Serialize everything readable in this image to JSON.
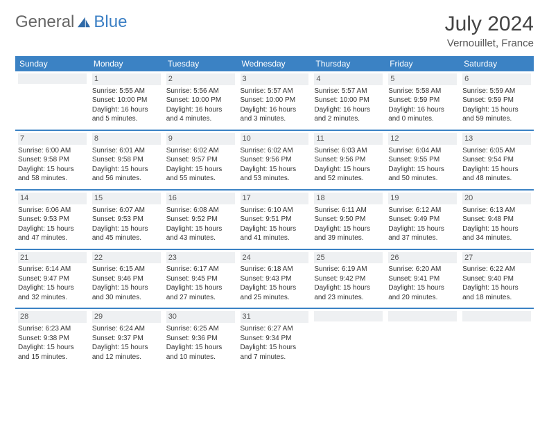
{
  "logo": {
    "part1": "General",
    "part2": "Blue"
  },
  "title": "July 2024",
  "location": "Vernouillet, France",
  "colors": {
    "header_bg": "#3b82c4",
    "header_fg": "#ffffff",
    "rule": "#3b82c4",
    "daynum_bg": "#eef0f2"
  },
  "weekdays": [
    "Sunday",
    "Monday",
    "Tuesday",
    "Wednesday",
    "Thursday",
    "Friday",
    "Saturday"
  ],
  "weeks": [
    [
      null,
      {
        "n": "1",
        "sr": "Sunrise: 5:55 AM",
        "ss": "Sunset: 10:00 PM",
        "d1": "Daylight: 16 hours",
        "d2": "and 5 minutes."
      },
      {
        "n": "2",
        "sr": "Sunrise: 5:56 AM",
        "ss": "Sunset: 10:00 PM",
        "d1": "Daylight: 16 hours",
        "d2": "and 4 minutes."
      },
      {
        "n": "3",
        "sr": "Sunrise: 5:57 AM",
        "ss": "Sunset: 10:00 PM",
        "d1": "Daylight: 16 hours",
        "d2": "and 3 minutes."
      },
      {
        "n": "4",
        "sr": "Sunrise: 5:57 AM",
        "ss": "Sunset: 10:00 PM",
        "d1": "Daylight: 16 hours",
        "d2": "and 2 minutes."
      },
      {
        "n": "5",
        "sr": "Sunrise: 5:58 AM",
        "ss": "Sunset: 9:59 PM",
        "d1": "Daylight: 16 hours",
        "d2": "and 0 minutes."
      },
      {
        "n": "6",
        "sr": "Sunrise: 5:59 AM",
        "ss": "Sunset: 9:59 PM",
        "d1": "Daylight: 15 hours",
        "d2": "and 59 minutes."
      }
    ],
    [
      {
        "n": "7",
        "sr": "Sunrise: 6:00 AM",
        "ss": "Sunset: 9:58 PM",
        "d1": "Daylight: 15 hours",
        "d2": "and 58 minutes."
      },
      {
        "n": "8",
        "sr": "Sunrise: 6:01 AM",
        "ss": "Sunset: 9:58 PM",
        "d1": "Daylight: 15 hours",
        "d2": "and 56 minutes."
      },
      {
        "n": "9",
        "sr": "Sunrise: 6:02 AM",
        "ss": "Sunset: 9:57 PM",
        "d1": "Daylight: 15 hours",
        "d2": "and 55 minutes."
      },
      {
        "n": "10",
        "sr": "Sunrise: 6:02 AM",
        "ss": "Sunset: 9:56 PM",
        "d1": "Daylight: 15 hours",
        "d2": "and 53 minutes."
      },
      {
        "n": "11",
        "sr": "Sunrise: 6:03 AM",
        "ss": "Sunset: 9:56 PM",
        "d1": "Daylight: 15 hours",
        "d2": "and 52 minutes."
      },
      {
        "n": "12",
        "sr": "Sunrise: 6:04 AM",
        "ss": "Sunset: 9:55 PM",
        "d1": "Daylight: 15 hours",
        "d2": "and 50 minutes."
      },
      {
        "n": "13",
        "sr": "Sunrise: 6:05 AM",
        "ss": "Sunset: 9:54 PM",
        "d1": "Daylight: 15 hours",
        "d2": "and 48 minutes."
      }
    ],
    [
      {
        "n": "14",
        "sr": "Sunrise: 6:06 AM",
        "ss": "Sunset: 9:53 PM",
        "d1": "Daylight: 15 hours",
        "d2": "and 47 minutes."
      },
      {
        "n": "15",
        "sr": "Sunrise: 6:07 AM",
        "ss": "Sunset: 9:53 PM",
        "d1": "Daylight: 15 hours",
        "d2": "and 45 minutes."
      },
      {
        "n": "16",
        "sr": "Sunrise: 6:08 AM",
        "ss": "Sunset: 9:52 PM",
        "d1": "Daylight: 15 hours",
        "d2": "and 43 minutes."
      },
      {
        "n": "17",
        "sr": "Sunrise: 6:10 AM",
        "ss": "Sunset: 9:51 PM",
        "d1": "Daylight: 15 hours",
        "d2": "and 41 minutes."
      },
      {
        "n": "18",
        "sr": "Sunrise: 6:11 AM",
        "ss": "Sunset: 9:50 PM",
        "d1": "Daylight: 15 hours",
        "d2": "and 39 minutes."
      },
      {
        "n": "19",
        "sr": "Sunrise: 6:12 AM",
        "ss": "Sunset: 9:49 PM",
        "d1": "Daylight: 15 hours",
        "d2": "and 37 minutes."
      },
      {
        "n": "20",
        "sr": "Sunrise: 6:13 AM",
        "ss": "Sunset: 9:48 PM",
        "d1": "Daylight: 15 hours",
        "d2": "and 34 minutes."
      }
    ],
    [
      {
        "n": "21",
        "sr": "Sunrise: 6:14 AM",
        "ss": "Sunset: 9:47 PM",
        "d1": "Daylight: 15 hours",
        "d2": "and 32 minutes."
      },
      {
        "n": "22",
        "sr": "Sunrise: 6:15 AM",
        "ss": "Sunset: 9:46 PM",
        "d1": "Daylight: 15 hours",
        "d2": "and 30 minutes."
      },
      {
        "n": "23",
        "sr": "Sunrise: 6:17 AM",
        "ss": "Sunset: 9:45 PM",
        "d1": "Daylight: 15 hours",
        "d2": "and 27 minutes."
      },
      {
        "n": "24",
        "sr": "Sunrise: 6:18 AM",
        "ss": "Sunset: 9:43 PM",
        "d1": "Daylight: 15 hours",
        "d2": "and 25 minutes."
      },
      {
        "n": "25",
        "sr": "Sunrise: 6:19 AM",
        "ss": "Sunset: 9:42 PM",
        "d1": "Daylight: 15 hours",
        "d2": "and 23 minutes."
      },
      {
        "n": "26",
        "sr": "Sunrise: 6:20 AM",
        "ss": "Sunset: 9:41 PM",
        "d1": "Daylight: 15 hours",
        "d2": "and 20 minutes."
      },
      {
        "n": "27",
        "sr": "Sunrise: 6:22 AM",
        "ss": "Sunset: 9:40 PM",
        "d1": "Daylight: 15 hours",
        "d2": "and 18 minutes."
      }
    ],
    [
      {
        "n": "28",
        "sr": "Sunrise: 6:23 AM",
        "ss": "Sunset: 9:38 PM",
        "d1": "Daylight: 15 hours",
        "d2": "and 15 minutes."
      },
      {
        "n": "29",
        "sr": "Sunrise: 6:24 AM",
        "ss": "Sunset: 9:37 PM",
        "d1": "Daylight: 15 hours",
        "d2": "and 12 minutes."
      },
      {
        "n": "30",
        "sr": "Sunrise: 6:25 AM",
        "ss": "Sunset: 9:36 PM",
        "d1": "Daylight: 15 hours",
        "d2": "and 10 minutes."
      },
      {
        "n": "31",
        "sr": "Sunrise: 6:27 AM",
        "ss": "Sunset: 9:34 PM",
        "d1": "Daylight: 15 hours",
        "d2": "and 7 minutes."
      },
      null,
      null,
      null
    ]
  ]
}
